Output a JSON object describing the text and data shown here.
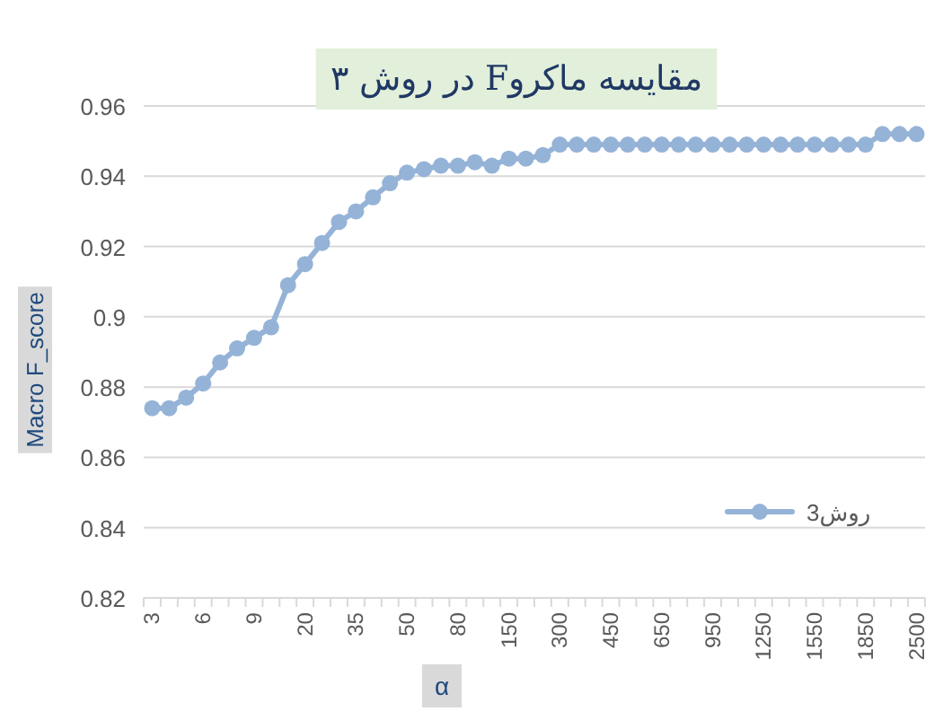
{
  "chart_data": {
    "type": "line",
    "title": "مقایسه ماکروF در روش ۳",
    "xlabel": "α",
    "ylabel": "Macro F_score",
    "categories": [
      "3",
      null,
      null,
      "6",
      null,
      null,
      "9",
      null,
      null,
      "20",
      null,
      null,
      "35",
      null,
      null,
      "50",
      null,
      null,
      "80",
      null,
      null,
      "150",
      null,
      null,
      "300",
      null,
      null,
      "450",
      null,
      null,
      "650",
      null,
      null,
      "950",
      null,
      null,
      "1250",
      null,
      null,
      "1550",
      null,
      null,
      "1850",
      null,
      null,
      "2500"
    ],
    "series": [
      {
        "name": "روش3",
        "color": "#95b3d7",
        "values": [
          0.874,
          0.874,
          0.877,
          0.881,
          0.887,
          0.891,
          0.894,
          0.897,
          0.909,
          0.915,
          0.921,
          0.927,
          0.93,
          0.934,
          0.938,
          0.941,
          0.942,
          0.943,
          0.943,
          0.944,
          0.943,
          0.945,
          0.945,
          0.946,
          0.949,
          0.949,
          0.949,
          0.949,
          0.949,
          0.949,
          0.949,
          0.949,
          0.949,
          0.949,
          0.949,
          0.949,
          0.949,
          0.949,
          0.949,
          0.949,
          0.949,
          0.949,
          0.949,
          0.952,
          0.952,
          0.952
        ]
      }
    ],
    "ylim": [
      0.82,
      0.96
    ],
    "yticks": [
      0.82,
      0.84,
      0.86,
      0.88,
      0.9,
      0.92,
      0.94,
      0.96
    ],
    "grid": "y",
    "legend": "bottom right",
    "marker": "circle",
    "line_style": "solid"
  }
}
